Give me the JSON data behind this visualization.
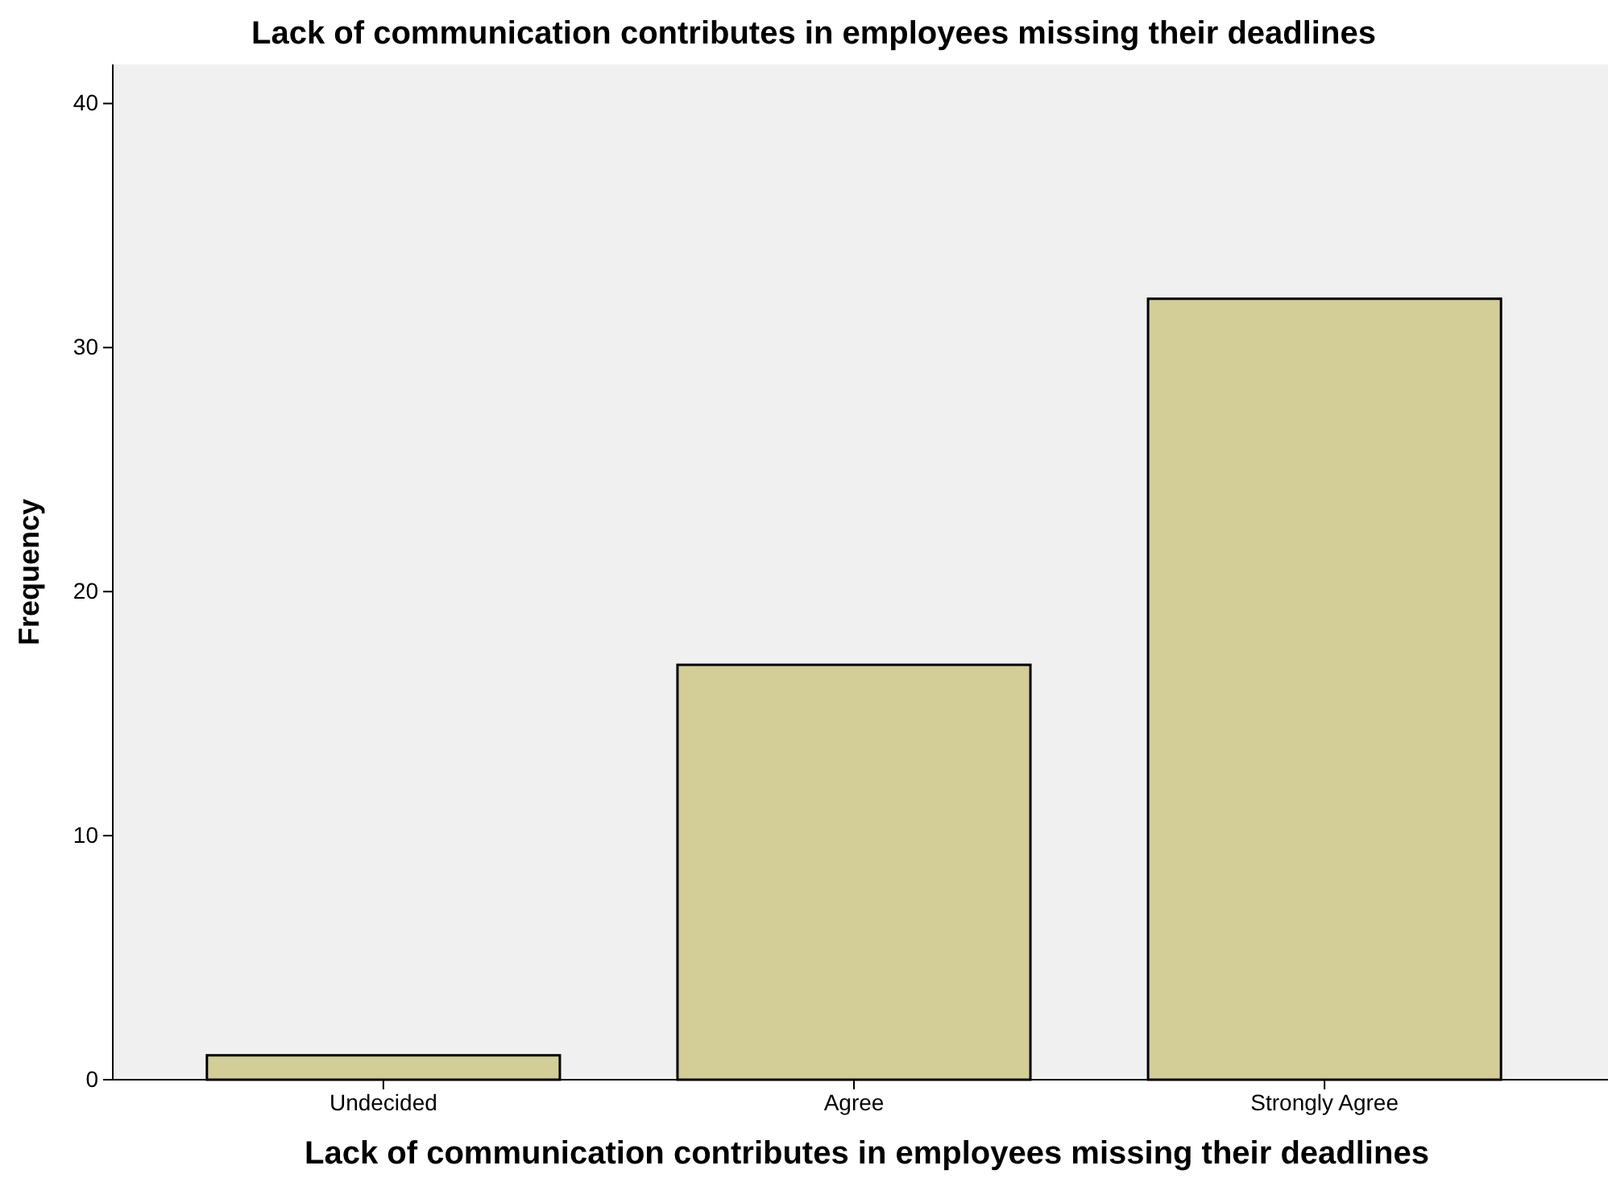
{
  "chart_data": {
    "type": "bar",
    "title": "Lack of communication contributes in employees missing their deadlines",
    "xlabel": "Lack of communication contributes in employees missing their deadlines",
    "ylabel": "Frequency",
    "categories": [
      "Undecided",
      "Agree",
      "Strongly Agree"
    ],
    "values": [
      1,
      17,
      32
    ],
    "color": "#d3ce97",
    "ylim": [
      0,
      41.6
    ],
    "yticks": [
      0,
      10,
      20,
      30,
      40
    ],
    "grid": false
  }
}
